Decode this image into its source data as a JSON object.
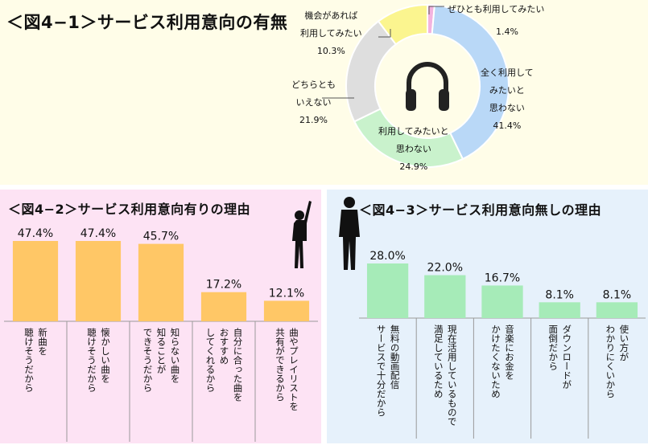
{
  "charts_title": {
    "pie": "＜図4−1＞サービス利用意向の有無",
    "bar1": "＜図4−2＞サービス利用意向有りの理由",
    "bar2": "＜図4−3＞サービス利用意向無しの理由"
  },
  "chart_data": [
    {
      "type": "pie",
      "title": "＜図4−1＞サービス利用意向の有無",
      "slices": [
        {
          "label_line1": "ぜひとも利用してみたい",
          "label_line2": "",
          "label_line3": "",
          "value": 1.4,
          "value_label": "1.4%",
          "color": "#f3b3df"
        },
        {
          "label_line1": "全く利用して",
          "label_line2": "みたいと",
          "label_line3": "思わない",
          "value": 41.4,
          "value_label": "41.4%",
          "color": "#b9d8f7"
        },
        {
          "label_line1": "利用してみたいと",
          "label_line2": "思わない",
          "label_line3": "",
          "value": 24.9,
          "value_label": "24.9%",
          "color": "#c9f2cc"
        },
        {
          "label_line1": "どちらとも",
          "label_line2": "いえない",
          "label_line3": "",
          "value": 21.9,
          "value_label": "21.9%",
          "color": "#dedede"
        },
        {
          "label_line1": "機会があれば",
          "label_line2": "利用してみたい",
          "label_line3": "",
          "value": 10.3,
          "value_label": "10.3%",
          "color": "#fbf58f"
        }
      ]
    },
    {
      "type": "bar",
      "title": "＜図4−2＞サービス利用意向有りの理由",
      "categories": [
        "新曲を聴けそうだから",
        "懐かしい曲を聴けそうだから",
        "知らない曲を知ることができそうだから",
        "自分に合った曲をおすすめしてくれるから",
        "曲やプレイリストを共有ができるから"
      ],
      "category_lines": [
        [
          "新曲を",
          "聴けそうだから"
        ],
        [
          "懐かしい曲を",
          "聴けそうだから"
        ],
        [
          "知らない曲を",
          "知ることが",
          "できそうだから"
        ],
        [
          "自分に合った曲を",
          "おすすめ",
          "してくれるから"
        ],
        [
          "曲やプレイリストを",
          "共有ができるから"
        ]
      ],
      "values": [
        47.4,
        47.4,
        45.7,
        17.2,
        12.1
      ],
      "value_labels": [
        "47.4%",
        "47.4%",
        "45.7%",
        "17.2%",
        "12.1%"
      ],
      "color": "#ffc766"
    },
    {
      "type": "bar",
      "title": "＜図4−3＞サービス利用意向無しの理由",
      "categories": [
        "無料の動画配信サービスで十分だから",
        "現在活用しているもので満足しているため",
        "音楽にお金をかけたくないため",
        "ダウンロードが面倒だから",
        "使い方がわかりにくいから"
      ],
      "category_lines": [
        [
          "無料の動画配信",
          "サービスで十分だから"
        ],
        [
          "現在活用しているもので",
          "満足しているため"
        ],
        [
          "音楽にお金を",
          "かけたくないため"
        ],
        [
          "ダウンロードが",
          "面倒だから"
        ],
        [
          "使い方が",
          "わかりにくいから"
        ]
      ],
      "values": [
        28.0,
        22.0,
        16.7,
        8.1,
        8.1
      ],
      "value_labels": [
        "28.0%",
        "22.0%",
        "16.7%",
        "8.1%",
        "8.1%"
      ],
      "color": "#a6ebb8"
    }
  ],
  "icons": {
    "headphones": "headphones-icon",
    "woman": "woman-silhouette-icon",
    "man": "man-silhouette-icon"
  }
}
